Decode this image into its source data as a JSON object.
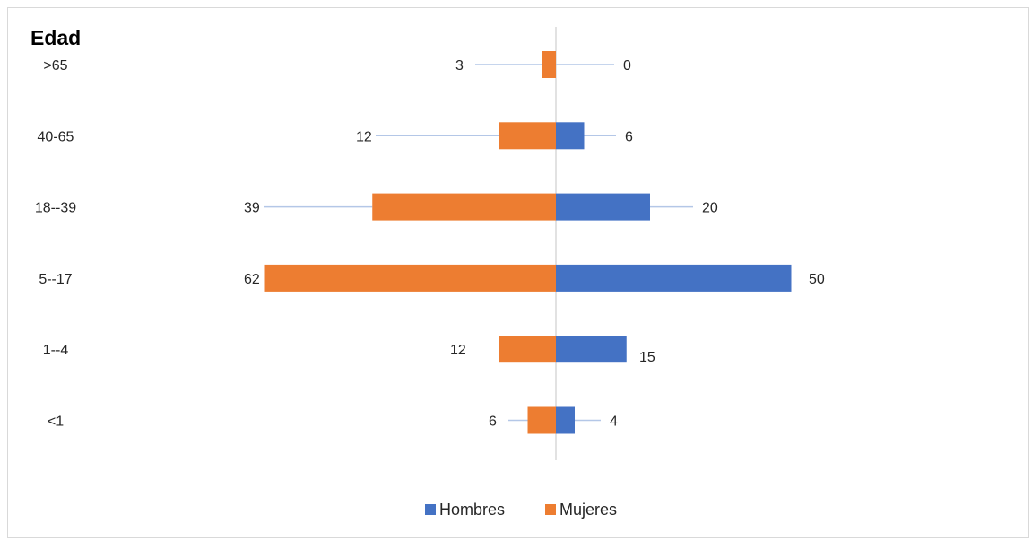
{
  "chart_data": {
    "type": "bar",
    "orientation": "horizontal",
    "layout": "population-pyramid",
    "ylabel": "Edad",
    "categories": [
      ">65",
      "40-65",
      "18--39",
      "5--17",
      "1--4",
      "<1"
    ],
    "series": [
      {
        "name": "Hombres",
        "color": "#4472c4",
        "side": "right",
        "values": [
          0,
          6,
          20,
          50,
          15,
          4
        ]
      },
      {
        "name": "Mujeres",
        "color": "#ed7d31",
        "side": "left",
        "values": [
          3,
          12,
          39,
          62,
          12,
          6
        ]
      }
    ],
    "legend": "bottom",
    "grid": false
  }
}
